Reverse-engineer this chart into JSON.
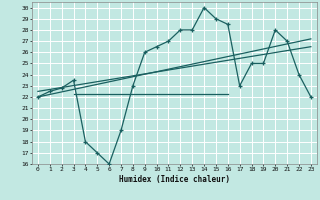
{
  "title": "",
  "xlabel": "Humidex (Indice chaleur)",
  "xlim": [
    -0.5,
    23.5
  ],
  "ylim": [
    16,
    30.5
  ],
  "yticks": [
    16,
    17,
    18,
    19,
    20,
    21,
    22,
    23,
    24,
    25,
    26,
    27,
    28,
    29,
    30
  ],
  "xticks": [
    0,
    1,
    2,
    3,
    4,
    5,
    6,
    7,
    8,
    9,
    10,
    11,
    12,
    13,
    14,
    15,
    16,
    17,
    18,
    19,
    20,
    21,
    22,
    23
  ],
  "bg_color": "#c2e8e2",
  "grid_color": "#ffffff",
  "line_color": "#1a6060",
  "main_line_x": [
    0,
    1,
    2,
    3,
    4,
    5,
    6,
    7,
    8,
    9,
    10,
    11,
    12,
    13,
    14,
    15,
    16,
    17,
    18,
    19,
    20,
    21,
    22,
    23
  ],
  "main_line_y": [
    22,
    22.5,
    22.8,
    23.5,
    18,
    17,
    16,
    19,
    23,
    26,
    26.5,
    27,
    28,
    28,
    30,
    29,
    28.5,
    23,
    25,
    25,
    28,
    27,
    24,
    22
  ],
  "trend1_x": [
    0,
    23
  ],
  "trend1_y": [
    22.0,
    27.2
  ],
  "trend2_x": [
    0,
    23
  ],
  "trend2_y": [
    22.5,
    26.5
  ],
  "flat_line_x": [
    3,
    16
  ],
  "flat_line_y": [
    22.3,
    22.3
  ]
}
